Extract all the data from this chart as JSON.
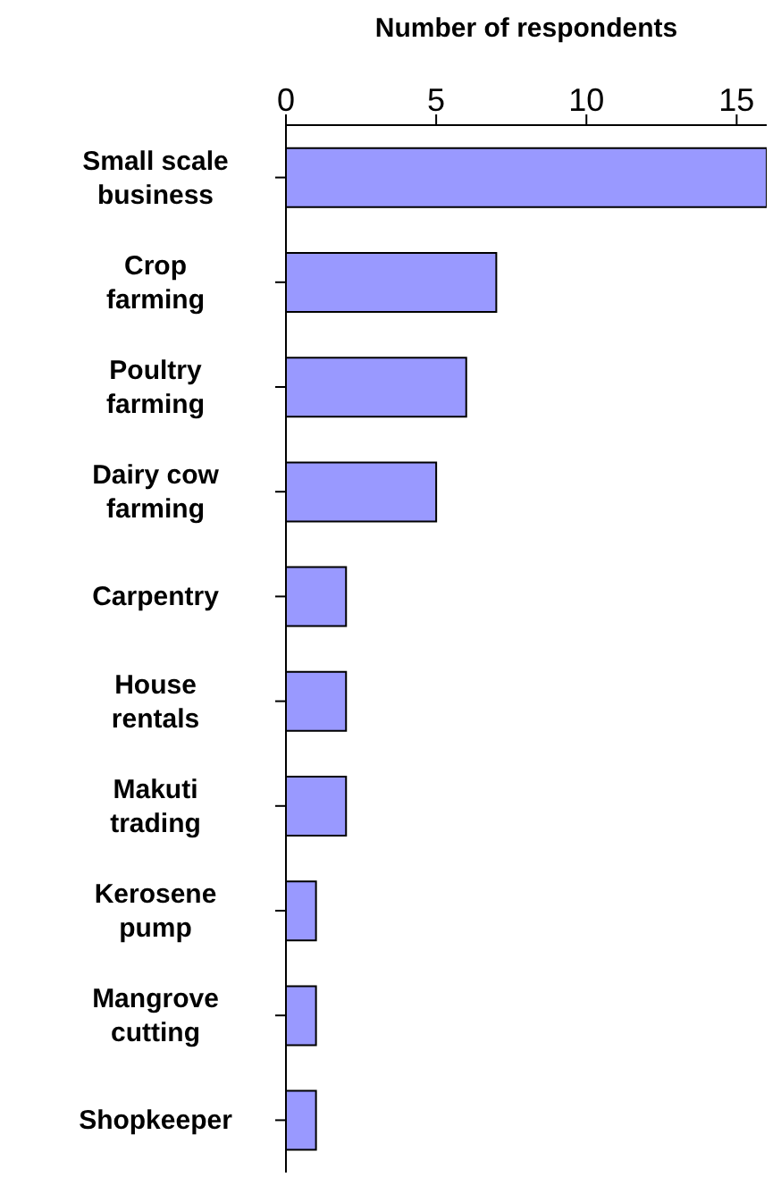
{
  "chart_data": {
    "type": "bar",
    "orientation": "horizontal",
    "xlabel": "Number of respondents",
    "categories": [
      "Small scale business",
      "Crop farming",
      "Poultry farming",
      "Dairy cow farming",
      "Carpentry",
      "House rentals",
      "Makuti trading",
      "Kerosene pump",
      "Mangrove cutting",
      "Shopkeeper"
    ],
    "values": [
      16,
      7,
      6,
      5,
      2,
      2,
      2,
      1,
      1,
      1
    ],
    "color": "#9999ff",
    "xlim": [
      0,
      16
    ],
    "xticks": [
      0,
      5,
      10,
      15
    ],
    "grid": false,
    "legend": false
  }
}
